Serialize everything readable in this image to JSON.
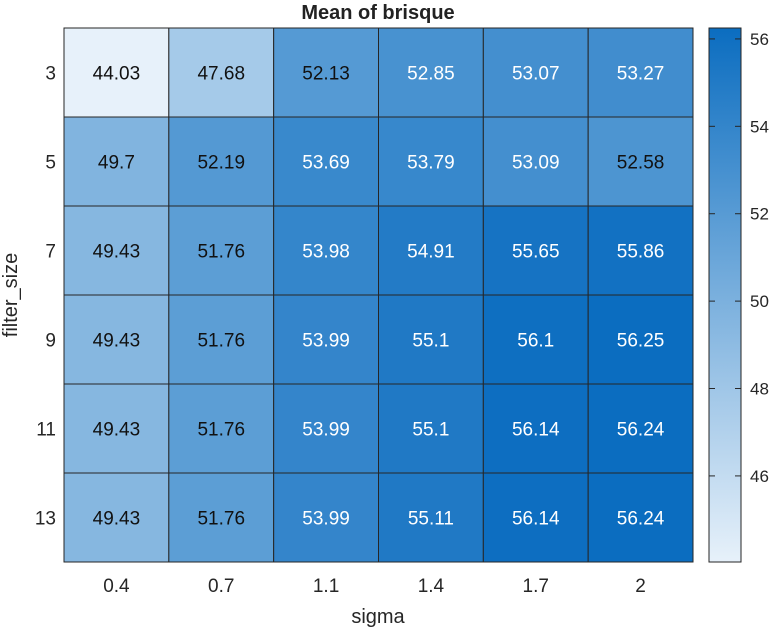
{
  "chart_data": {
    "type": "heatmap",
    "title": "Mean of brisque",
    "xlabel": "sigma",
    "ylabel": "filter_size",
    "x_categories": [
      "0.4",
      "0.7",
      "1.1",
      "1.4",
      "1.7",
      "2"
    ],
    "y_categories": [
      "3",
      "5",
      "7",
      "9",
      "11",
      "13"
    ],
    "values": [
      [
        44.03,
        47.68,
        52.13,
        52.85,
        53.07,
        53.27
      ],
      [
        49.7,
        52.19,
        53.69,
        53.79,
        53.09,
        52.58
      ],
      [
        49.43,
        51.76,
        53.98,
        54.91,
        55.65,
        55.86
      ],
      [
        49.43,
        51.76,
        53.99,
        55.1,
        56.1,
        56.25
      ],
      [
        49.43,
        51.76,
        53.99,
        55.1,
        56.14,
        56.24
      ],
      [
        49.43,
        51.76,
        53.99,
        55.11,
        56.14,
        56.24
      ]
    ],
    "colorbar": {
      "min": 44.03,
      "max": 56.25,
      "ticks": [
        46,
        48,
        50,
        52,
        54,
        56
      ],
      "color_low": "#e7f1fa",
      "color_high": "#0b6dc0"
    }
  }
}
